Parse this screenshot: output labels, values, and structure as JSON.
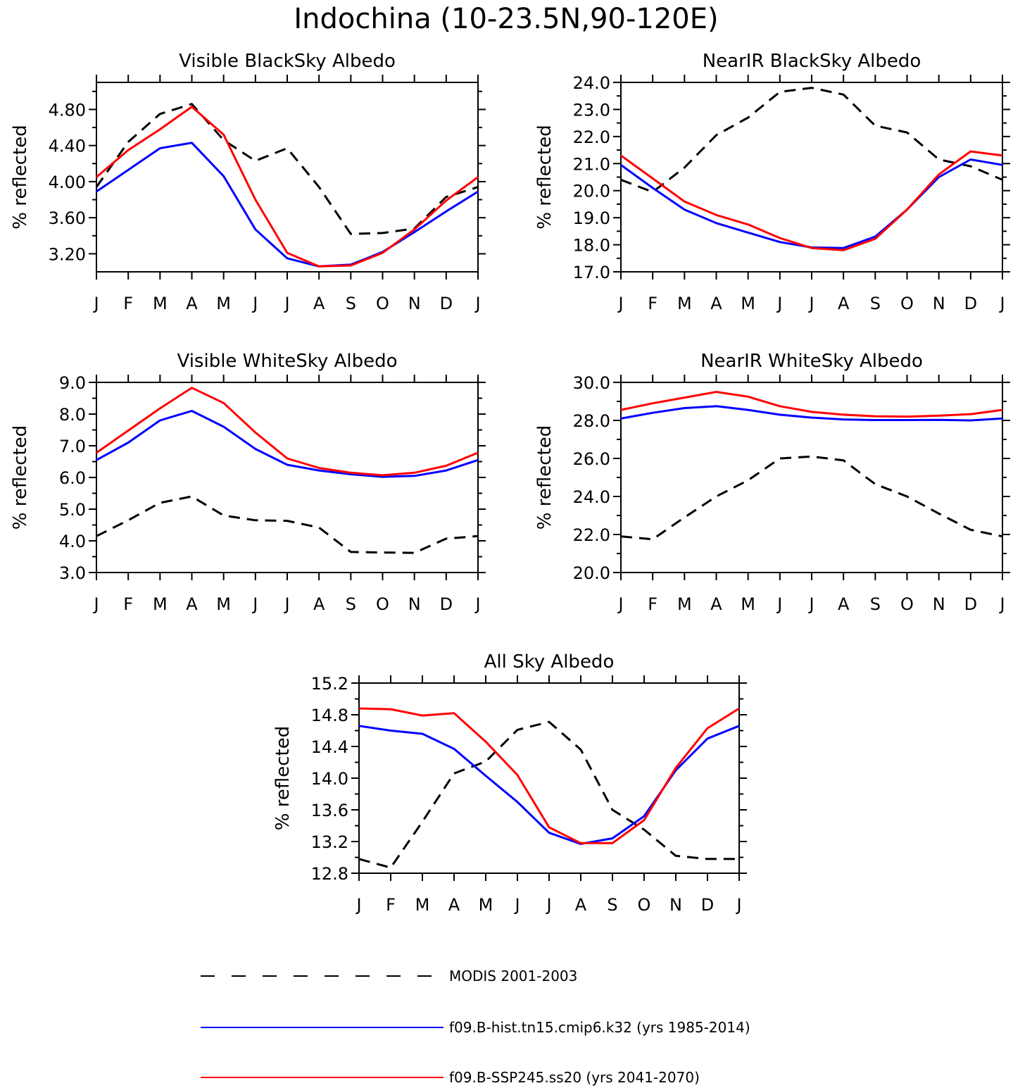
{
  "title": "Indochina (10-23.5N,90-120E)",
  "months": [
    "J",
    "F",
    "M",
    "A",
    "M",
    "J",
    "J",
    "A",
    "S",
    "O",
    "N",
    "D",
    "J"
  ],
  "colors": {
    "modis": "#000000",
    "hist": "#0000ff",
    "ssp": "#ff0000"
  },
  "legend": [
    {
      "key": "modis",
      "label": "MODIS 2001-2003",
      "style": "dashed"
    },
    {
      "key": "hist",
      "label": "f09.B-hist.tn15.cmip6.k32 (yrs 1985-2014)",
      "style": "solid"
    },
    {
      "key": "ssp",
      "label": "f09.B-SSP245.ss20 (yrs 2041-2070)",
      "style": "solid"
    }
  ],
  "chart_data": [
    {
      "type": "line",
      "title": "Visible BlackSky Albedo",
      "ylabel": "% reflected",
      "ylim": [
        3.0,
        5.1
      ],
      "yticks": [
        3.2,
        3.6,
        4.0,
        4.4,
        4.8
      ],
      "ytick_labels": [
        "3.20",
        "3.60",
        "4.00",
        "4.40",
        "4.80"
      ],
      "categories": [
        "J",
        "F",
        "M",
        "A",
        "M",
        "J",
        "J",
        "A",
        "S",
        "O",
        "N",
        "D",
        "J"
      ],
      "series": {
        "modis": [
          3.94,
          4.44,
          4.75,
          4.86,
          4.46,
          4.23,
          4.37,
          3.94,
          3.42,
          3.43,
          3.48,
          3.83,
          3.94
        ],
        "hist": [
          3.89,
          4.13,
          4.37,
          4.43,
          4.06,
          3.47,
          3.15,
          3.06,
          3.08,
          3.22,
          3.44,
          3.67,
          3.89
        ],
        "ssp": [
          4.05,
          4.35,
          4.58,
          4.83,
          4.52,
          3.8,
          3.21,
          3.06,
          3.07,
          3.21,
          3.47,
          3.79,
          4.05
        ]
      }
    },
    {
      "type": "line",
      "title": "NearIR BlackSky Albedo",
      "ylabel": "% reflected",
      "ylim": [
        17.0,
        24.0
      ],
      "yticks": [
        17,
        18,
        19,
        20,
        21,
        22,
        23,
        24
      ],
      "ytick_labels": [
        "17.0",
        "18.0",
        "19.0",
        "20.0",
        "21.0",
        "22.0",
        "23.0",
        "24.0"
      ],
      "categories": [
        "J",
        "F",
        "M",
        "A",
        "M",
        "J",
        "J",
        "A",
        "S",
        "O",
        "N",
        "D",
        "J"
      ],
      "series": {
        "modis": [
          20.4,
          19.95,
          20.85,
          22.05,
          22.7,
          23.65,
          23.8,
          23.55,
          22.4,
          22.15,
          21.15,
          20.9,
          20.4
        ],
        "hist": [
          20.95,
          20.1,
          19.3,
          18.8,
          18.45,
          18.1,
          17.9,
          17.88,
          18.3,
          19.3,
          20.5,
          21.15,
          20.95
        ],
        "ssp": [
          21.3,
          20.45,
          19.6,
          19.1,
          18.75,
          18.25,
          17.88,
          17.8,
          18.22,
          19.3,
          20.6,
          21.45,
          21.3
        ]
      }
    },
    {
      "type": "line",
      "title": "Visible WhiteSky Albedo",
      "ylabel": "% reflected",
      "ylim": [
        3.0,
        9.0
      ],
      "yticks": [
        3,
        4,
        5,
        6,
        7,
        8,
        9
      ],
      "ytick_labels": [
        "3.0",
        "4.0",
        "5.0",
        "6.0",
        "7.0",
        "8.0",
        "9.0"
      ],
      "categories": [
        "J",
        "F",
        "M",
        "A",
        "M",
        "J",
        "J",
        "A",
        "S",
        "O",
        "N",
        "D",
        "J"
      ],
      "series": {
        "modis": [
          4.15,
          4.65,
          5.2,
          5.4,
          4.8,
          4.65,
          4.63,
          4.42,
          3.65,
          3.63,
          3.62,
          4.07,
          4.15
        ],
        "hist": [
          6.55,
          7.1,
          7.8,
          8.1,
          7.6,
          6.9,
          6.4,
          6.22,
          6.1,
          6.02,
          6.05,
          6.22,
          6.55
        ],
        "ssp": [
          6.78,
          7.48,
          8.18,
          8.83,
          8.35,
          7.42,
          6.6,
          6.3,
          6.15,
          6.07,
          6.15,
          6.37,
          6.78
        ]
      }
    },
    {
      "type": "line",
      "title": "NearIR WhiteSky Albedo",
      "ylabel": "% reflected",
      "ylim": [
        20.0,
        30.0
      ],
      "yticks": [
        20,
        22,
        24,
        26,
        28,
        30
      ],
      "ytick_labels": [
        "20.0",
        "22.0",
        "24.0",
        "26.0",
        "28.0",
        "30.0"
      ],
      "categories": [
        "J",
        "F",
        "M",
        "A",
        "M",
        "J",
        "J",
        "A",
        "S",
        "O",
        "N",
        "D",
        "J"
      ],
      "series": {
        "modis": [
          21.9,
          21.75,
          22.9,
          24.0,
          24.85,
          26.0,
          26.1,
          25.9,
          24.65,
          24.0,
          23.1,
          22.25,
          21.9
        ],
        "hist": [
          28.1,
          28.4,
          28.65,
          28.75,
          28.55,
          28.3,
          28.15,
          28.05,
          28.02,
          28.02,
          28.03,
          28.0,
          28.1
        ],
        "ssp": [
          28.55,
          28.9,
          29.2,
          29.5,
          29.25,
          28.75,
          28.45,
          28.3,
          28.22,
          28.2,
          28.25,
          28.33,
          28.55
        ]
      }
    },
    {
      "type": "line",
      "title": "All Sky Albedo",
      "ylabel": "% reflected",
      "ylim": [
        12.8,
        15.2
      ],
      "yticks": [
        12.8,
        13.2,
        13.6,
        14.0,
        14.4,
        14.8,
        15.2
      ],
      "ytick_labels": [
        "12.8",
        "13.2",
        "13.6",
        "14.0",
        "14.4",
        "14.8",
        "15.2"
      ],
      "categories": [
        "J",
        "F",
        "M",
        "A",
        "M",
        "J",
        "J",
        "A",
        "S",
        "O",
        "N",
        "D",
        "J"
      ],
      "series": {
        "modis": [
          12.98,
          12.87,
          13.45,
          14.06,
          14.21,
          14.61,
          14.71,
          14.36,
          13.6,
          13.35,
          13.02,
          12.98,
          12.98
        ],
        "hist": [
          14.66,
          14.6,
          14.56,
          14.37,
          14.03,
          13.7,
          13.31,
          13.17,
          13.24,
          13.52,
          14.1,
          14.5,
          14.66
        ],
        "ssp": [
          14.88,
          14.87,
          14.79,
          14.82,
          14.46,
          14.04,
          13.38,
          13.18,
          13.18,
          13.47,
          14.13,
          14.63,
          14.88
        ]
      }
    }
  ]
}
